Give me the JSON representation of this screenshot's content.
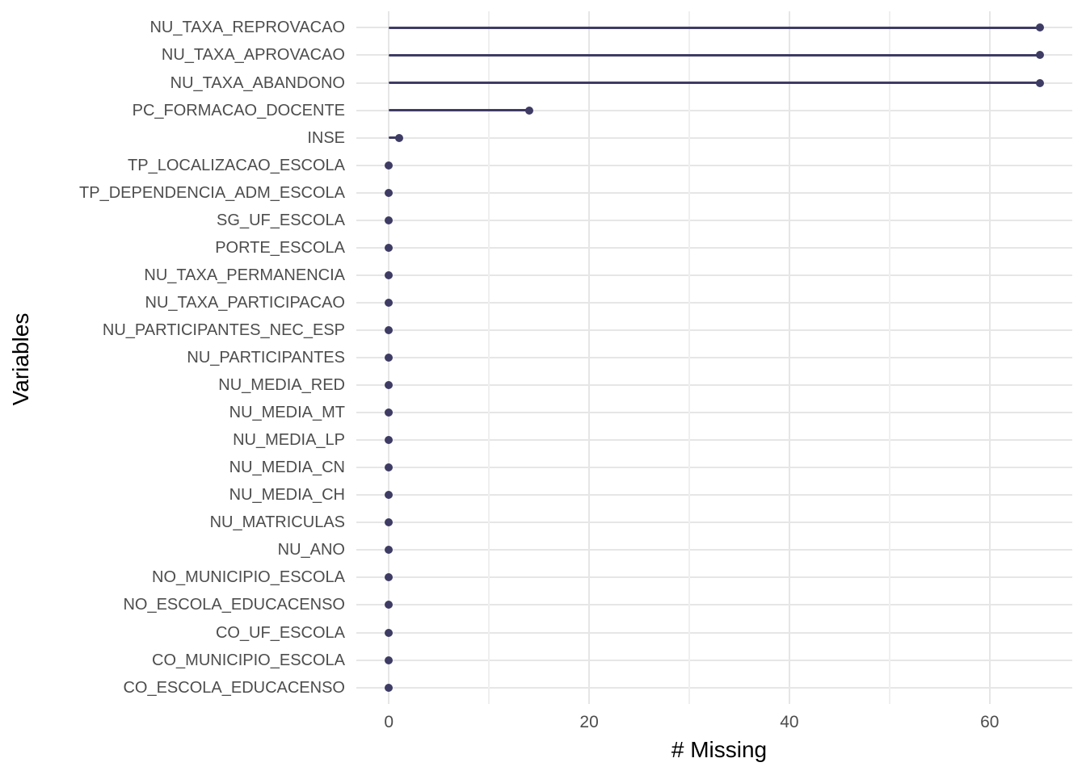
{
  "chart_data": {
    "type": "lollipop",
    "orientation": "horizontal",
    "title": "",
    "xlabel": "# Missing",
    "ylabel": "Variables",
    "categories": [
      "NU_TAXA_REPROVACAO",
      "NU_TAXA_APROVACAO",
      "NU_TAXA_ABANDONO",
      "PC_FORMACAO_DOCENTE",
      "INSE",
      "TP_LOCALIZACAO_ESCOLA",
      "TP_DEPENDENCIA_ADM_ESCOLA",
      "SG_UF_ESCOLA",
      "PORTE_ESCOLA",
      "NU_TAXA_PERMANENCIA",
      "NU_TAXA_PARTICIPACAO",
      "NU_PARTICIPANTES_NEC_ESP",
      "NU_PARTICIPANTES",
      "NU_MEDIA_RED",
      "NU_MEDIA_MT",
      "NU_MEDIA_LP",
      "NU_MEDIA_CN",
      "NU_MEDIA_CH",
      "NU_MATRICULAS",
      "NU_ANO",
      "NO_MUNICIPIO_ESCOLA",
      "NO_ESCOLA_EDUCACENSO",
      "CO_UF_ESCOLA",
      "CO_MUNICIPIO_ESCOLA",
      "CO_ESCOLA_EDUCACENSO"
    ],
    "values": [
      65,
      65,
      65,
      14,
      1,
      0,
      0,
      0,
      0,
      0,
      0,
      0,
      0,
      0,
      0,
      0,
      0,
      0,
      0,
      0,
      0,
      0,
      0,
      0,
      0
    ],
    "x_ticks": [
      0,
      20,
      40,
      60
    ],
    "x_minor_ticks": [
      10,
      30,
      50
    ],
    "xlim": [
      -3.25,
      68.25
    ],
    "legend": "none",
    "grid": "vertical major+minor, horizontal major per category",
    "colors": {
      "point": "#3e3c64",
      "line": "#3e3c64",
      "grid_major": "#e6e6e6",
      "grid_minor": "#efefef",
      "axis_text": "#4d4d4d",
      "axis_title": "#000000",
      "background": "#ffffff"
    }
  }
}
